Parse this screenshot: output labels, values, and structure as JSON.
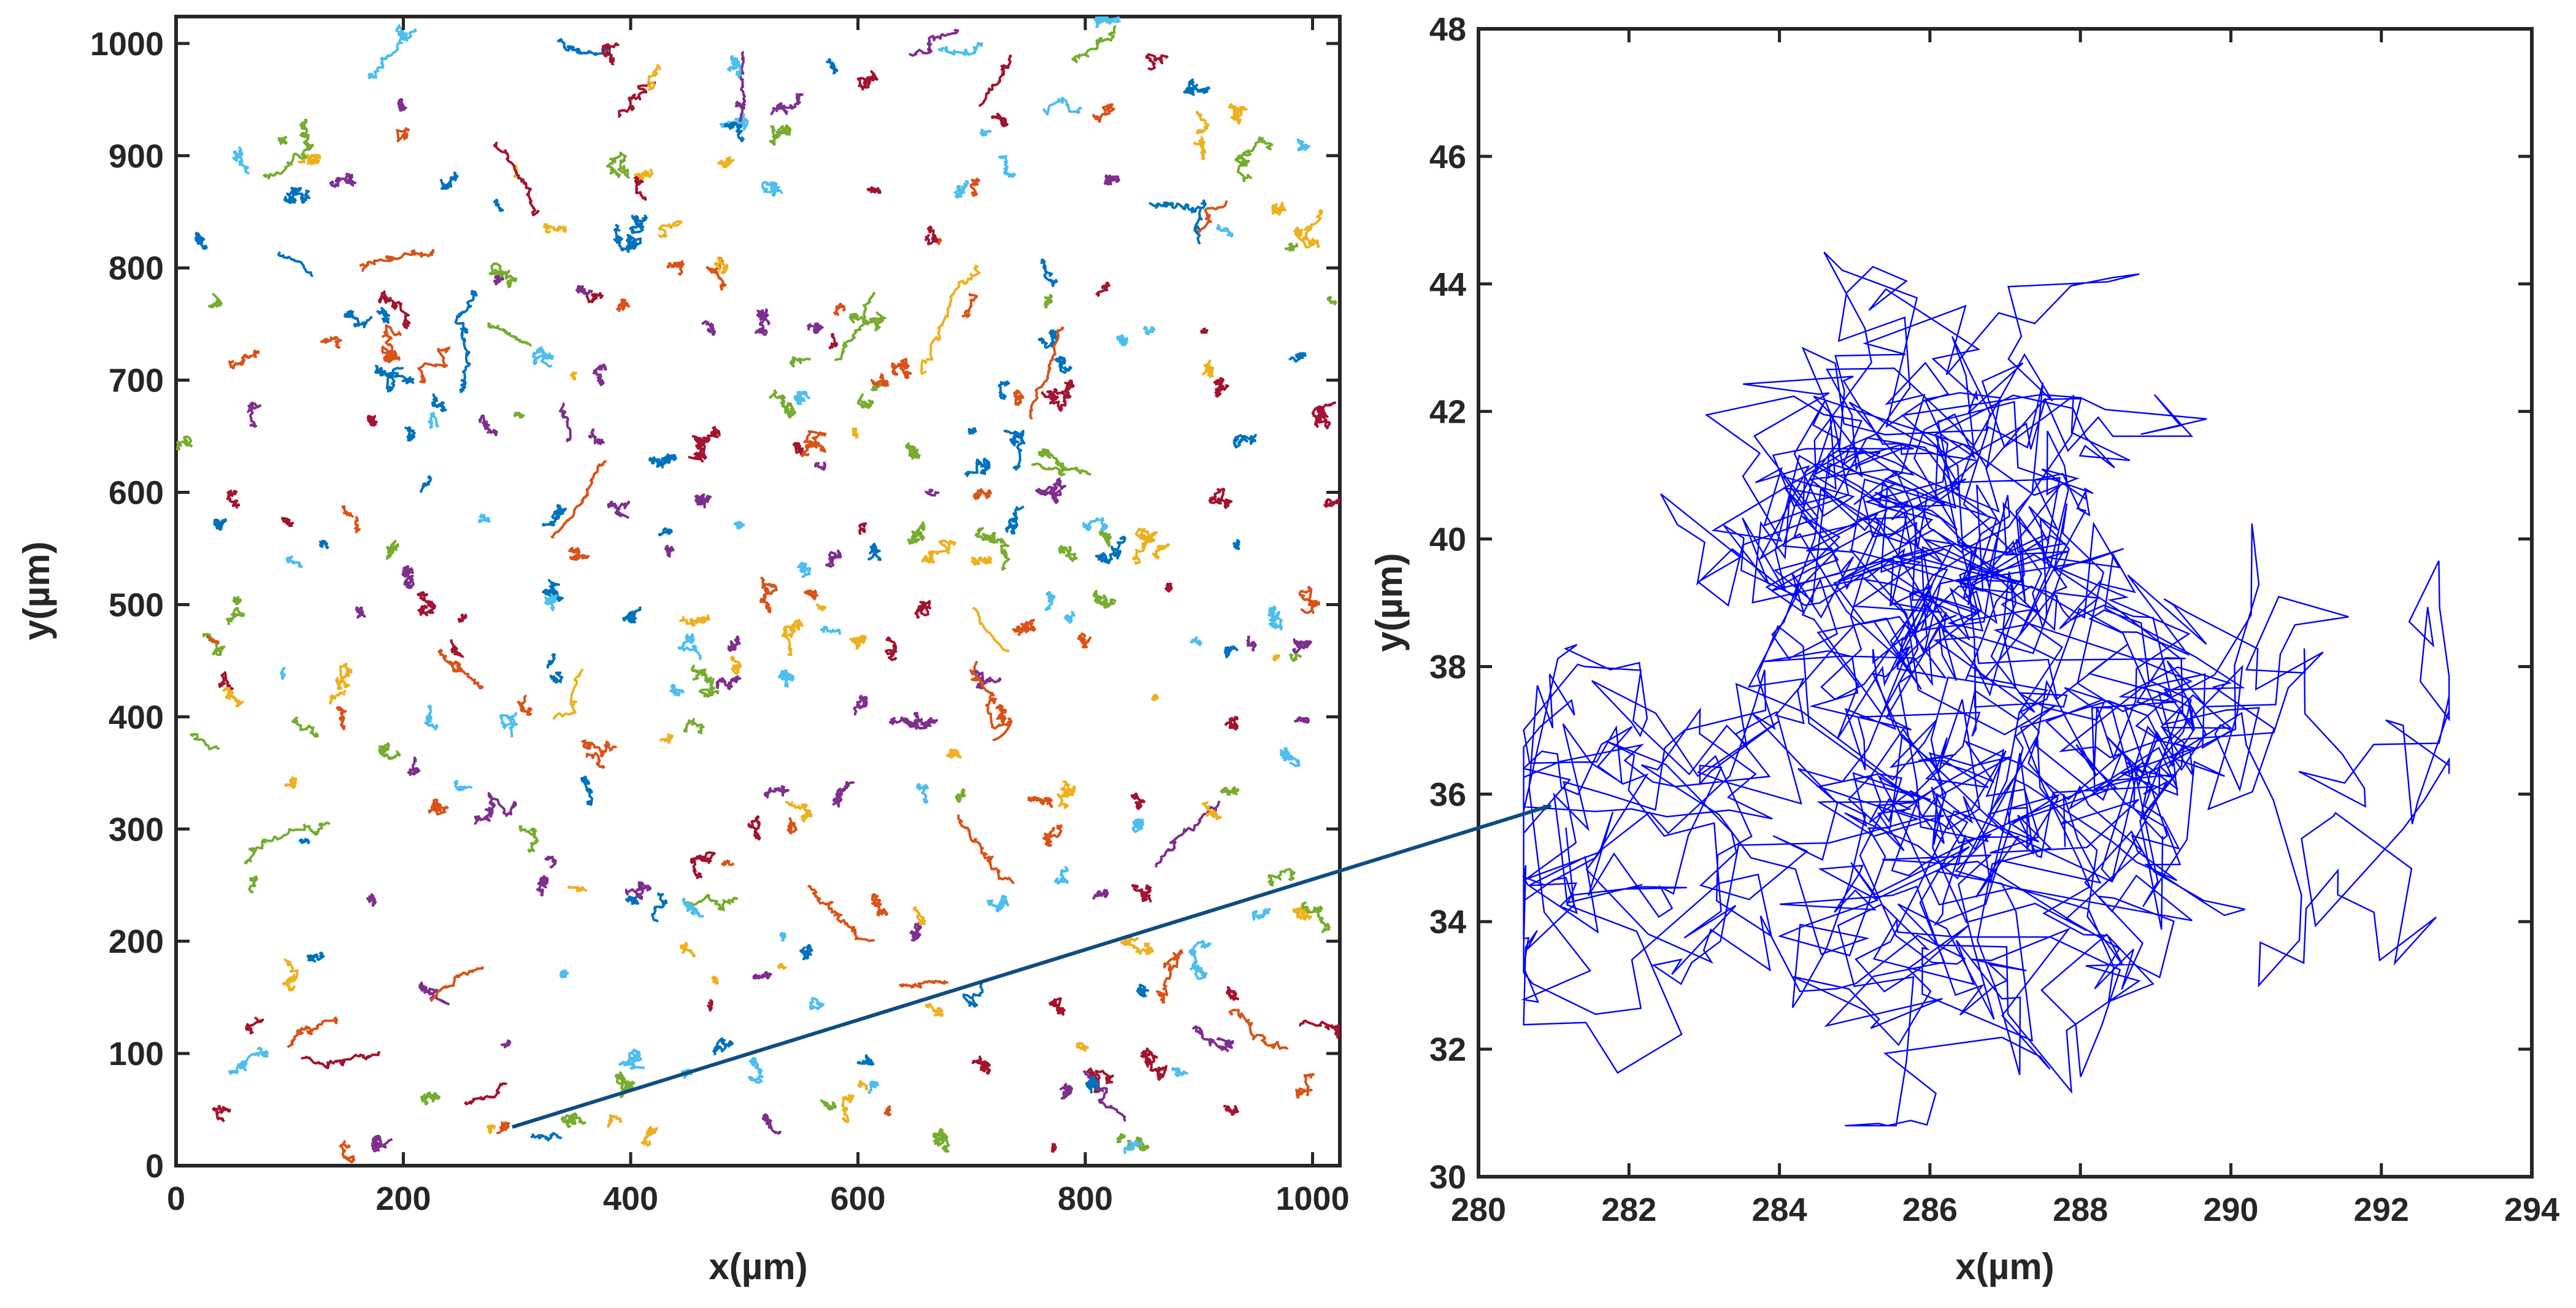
{
  "chart_data": [
    {
      "type": "scatter",
      "title": "",
      "description_key": "left-overview",
      "xlabel": "x(µm)",
      "ylabel": "y(µm)",
      "xlim": [
        0,
        1024
      ],
      "ylim": [
        0,
        1024
      ],
      "xticks": [
        0,
        200,
        400,
        600,
        800,
        1000
      ],
      "yticks": [
        0,
        100,
        200,
        300,
        400,
        500,
        600,
        700,
        800,
        900,
        1000
      ],
      "grid": false,
      "legend": "none",
      "series_colors": [
        "#0072BD",
        "#D95319",
        "#EDB120",
        "#7E2F8E",
        "#77AC30",
        "#4DBEEE",
        "#A2142F"
      ],
      "highlighted_track": {
        "x": 286,
        "y": 38
      }
    },
    {
      "type": "line",
      "title": "",
      "description_key": "right-zoom-trajectory",
      "xlabel": "x(µm)",
      "ylabel": "y(µm)",
      "xlim": [
        280,
        294
      ],
      "ylim": [
        30,
        48
      ],
      "xticks": [
        280,
        282,
        284,
        286,
        288,
        290,
        292,
        294
      ],
      "yticks": [
        30,
        32,
        34,
        36,
        38,
        40,
        42,
        44,
        46,
        48
      ],
      "grid": false,
      "legend": "none",
      "line_color": "#0000FF",
      "trajectory_seed_points": [
        {
          "x": 281.4,
          "y": 35.0
        },
        {
          "x": 282.6,
          "y": 34.9
        },
        {
          "x": 285.7,
          "y": 40.6
        },
        {
          "x": 286.2,
          "y": 40.8
        },
        {
          "x": 287.6,
          "y": 37.2
        },
        {
          "x": 288.1,
          "y": 36.0
        },
        {
          "x": 286.0,
          "y": 34.0
        },
        {
          "x": 287.0,
          "y": 33.4
        },
        {
          "x": 285.0,
          "y": 38.5
        },
        {
          "x": 289.0,
          "y": 39.0
        },
        {
          "x": 291.0,
          "y": 38.5
        },
        {
          "x": 286.5,
          "y": 44.3
        }
      ]
    }
  ],
  "arrow": {
    "color": "#0F4C81"
  }
}
